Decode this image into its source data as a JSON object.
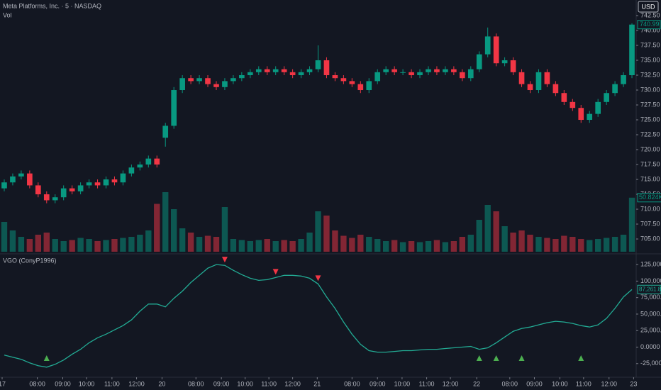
{
  "chart_data": [
    {
      "type": "candlestick",
      "title": "Meta Platforms, Inc. · 5 · NASDAQ",
      "volume_title": "Vol",
      "currency": "USD",
      "up_color": "#089981",
      "down_color": "#f23645",
      "xlim": [
        0,
        75
      ],
      "ylim": [
        702.86,
        745.12
      ],
      "yticks": [
        {
          "value": 705,
          "label": "705.00"
        },
        {
          "value": 707.5,
          "label": "707.50"
        },
        {
          "value": 710,
          "label": "710.00"
        },
        {
          "value": 712.5,
          "label": "712.50"
        },
        {
          "value": 715,
          "label": "715.00"
        },
        {
          "value": 717.5,
          "label": "717.50"
        },
        {
          "value": 720,
          "label": "720.00"
        },
        {
          "value": 722.5,
          "label": "722.50"
        },
        {
          "value": 725,
          "label": "725.00"
        },
        {
          "value": 727.5,
          "label": "727.50"
        },
        {
          "value": 730,
          "label": "730.00"
        },
        {
          "value": 732.5,
          "label": "732.50"
        },
        {
          "value": 735,
          "label": "735.00"
        },
        {
          "value": 737.5,
          "label": "737.50"
        },
        {
          "value": 740,
          "label": "740.00"
        },
        {
          "value": 742.5,
          "label": "742.50"
        }
      ],
      "open": [
        713.5,
        714.5,
        715.5,
        716,
        714,
        712.5,
        711.5,
        712,
        713.5,
        713,
        714,
        714.5,
        714,
        715,
        714.5,
        716,
        717,
        717.5,
        718.5,
        722,
        724,
        730,
        732,
        731.5,
        732,
        731,
        730.5,
        731.5,
        732,
        732.5,
        733,
        733.5,
        733,
        733.5,
        733,
        732.5,
        733,
        733.5,
        735,
        732.5,
        732,
        731.5,
        731,
        730,
        731.5,
        733,
        733.5,
        733,
        733,
        732.5,
        733,
        733.5,
        733,
        733.5,
        733,
        732,
        733.5,
        736,
        739,
        734.5,
        735,
        733,
        731,
        730,
        733,
        731,
        729.5,
        728,
        727,
        725,
        726,
        728,
        729.5,
        731,
        732.5
      ],
      "high": [
        715,
        716,
        716.5,
        716.5,
        714.5,
        713,
        712.5,
        714,
        714,
        714.5,
        715,
        715,
        715.5,
        715.5,
        716.5,
        717.5,
        718,
        719,
        719,
        724.5,
        730.5,
        732.5,
        732.5,
        732.5,
        732.5,
        731.5,
        732,
        732.5,
        733,
        733.5,
        734,
        734,
        734,
        734,
        733.5,
        733.5,
        734,
        737.5,
        735.5,
        733,
        732.5,
        732,
        731.5,
        732,
        733.5,
        734,
        734,
        733.5,
        733.5,
        733.5,
        734,
        734,
        734,
        734,
        733.5,
        734,
        736.5,
        740.5,
        739.5,
        735.5,
        735.5,
        733.5,
        731.5,
        733.5,
        733.5,
        731.5,
        730,
        728.5,
        727.5,
        726.5,
        728.5,
        730,
        731.5,
        733,
        741.2
      ],
      "low": [
        713,
        714,
        715,
        713.5,
        712,
        711,
        711,
        711.5,
        712.5,
        712.5,
        713.5,
        713.5,
        713.5,
        714,
        714,
        715.5,
        716.5,
        717,
        717,
        720.5,
        723.5,
        729.5,
        731,
        731,
        730.5,
        730,
        730,
        731,
        731.5,
        732,
        732.5,
        732.5,
        732.5,
        732.5,
        732,
        732,
        732.5,
        733,
        732,
        731.5,
        731,
        730.5,
        729.5,
        729.5,
        731,
        732.5,
        732.5,
        732.5,
        732,
        732,
        732.5,
        732.5,
        732.5,
        732.5,
        731.5,
        731.5,
        733,
        735.5,
        734,
        734,
        732.5,
        730.5,
        729.5,
        729.5,
        730.5,
        729,
        727.5,
        726.5,
        724.5,
        724.5,
        725.5,
        727.5,
        729,
        730.5,
        732
      ],
      "close": [
        714.5,
        715.5,
        716,
        714,
        712.5,
        711.5,
        712,
        713.5,
        713,
        714,
        714.5,
        714,
        715,
        714.5,
        716,
        717,
        717.5,
        718.5,
        717.5,
        724,
        730,
        732,
        731.5,
        732,
        731,
        730.5,
        731.5,
        732,
        732.5,
        733,
        733.5,
        733,
        733.5,
        733,
        732.5,
        733,
        733.5,
        735,
        732.5,
        732,
        731.5,
        731,
        730,
        731.5,
        733,
        733.5,
        733,
        733,
        732.5,
        733,
        733.5,
        733,
        733.5,
        733,
        732,
        733.5,
        736,
        739,
        734.5,
        735,
        733,
        731,
        730,
        733,
        731,
        729.5,
        728,
        727,
        725,
        726,
        728,
        729.5,
        731,
        732.5,
        740.99
      ],
      "last_price_label": "740.99",
      "volume": [
        28000,
        20000,
        14000,
        12000,
        16000,
        18000,
        12000,
        10000,
        11000,
        13000,
        12000,
        10000,
        11000,
        12000,
        13000,
        14000,
        16000,
        20000,
        45000,
        56000,
        40000,
        22000,
        18000,
        14000,
        15000,
        14000,
        42000,
        12000,
        11000,
        10000,
        11000,
        12000,
        10000,
        11000,
        10000,
        12000,
        18000,
        38000,
        34000,
        20000,
        15000,
        13000,
        16000,
        14000,
        12000,
        10000,
        11000,
        9000,
        10000,
        9000,
        10000,
        11000,
        9000,
        10000,
        14000,
        16000,
        30000,
        44000,
        38000,
        24000,
        18000,
        20000,
        16000,
        14000,
        13000,
        12000,
        15000,
        14000,
        12000,
        11000,
        12000,
        13000,
        14000,
        16000,
        50824
      ],
      "volume_lim": [
        0,
        60000
      ],
      "last_volume_label": "50.824K"
    },
    {
      "type": "line",
      "title": "VGO (ConyP1996)",
      "color": "#22ab94",
      "sell_color": "#f23645",
      "buy_color": "#4caf50",
      "xlim": [
        0,
        75
      ],
      "ylim": [
        -45650,
        139100
      ],
      "xticks": [
        {
          "value": 0.25,
          "label": "17"
        },
        {
          "value": 4.4,
          "label": "08:00"
        },
        {
          "value": 7.4,
          "label": "09:00"
        },
        {
          "value": 10.2,
          "label": "10:00"
        },
        {
          "value": 13.2,
          "label": "11:00"
        },
        {
          "value": 16.1,
          "label": "12:00"
        },
        {
          "value": 19.1,
          "label": "20"
        },
        {
          "value": 23.1,
          "label": "08:00"
        },
        {
          "value": 26.1,
          "label": "09:00"
        },
        {
          "value": 28.9,
          "label": "10:00"
        },
        {
          "value": 31.7,
          "label": "11:00"
        },
        {
          "value": 34.5,
          "label": "12:00"
        },
        {
          "value": 37.4,
          "label": "21"
        },
        {
          "value": 41.5,
          "label": "08:00"
        },
        {
          "value": 44.5,
          "label": "09:00"
        },
        {
          "value": 47.4,
          "label": "10:00"
        },
        {
          "value": 50.3,
          "label": "11:00"
        },
        {
          "value": 53.1,
          "label": "12:00"
        },
        {
          "value": 56.2,
          "label": "22"
        },
        {
          "value": 60.1,
          "label": "08:00"
        },
        {
          "value": 63,
          "label": "09:00"
        },
        {
          "value": 66,
          "label": "10:00"
        },
        {
          "value": 68.8,
          "label": "11:00"
        },
        {
          "value": 71.8,
          "label": "12:00"
        },
        {
          "value": 74.7,
          "label": "23"
        }
      ],
      "yticks": [
        {
          "value": -25000,
          "label": "-25,000.00"
        },
        {
          "value": 0,
          "label": "0.0000"
        },
        {
          "value": 25000,
          "label": "25,000.00"
        },
        {
          "value": 50000,
          "label": "50,000.00"
        },
        {
          "value": 75000,
          "label": "75,000.00"
        },
        {
          "value": 100000,
          "label": "100,000.00"
        },
        {
          "value": 125000,
          "label": "125,000.00"
        }
      ],
      "values": [
        -12000,
        -15200,
        -18500,
        -23900,
        -28300,
        -30400,
        -26100,
        -19600,
        -10900,
        -3300,
        6500,
        14100,
        19600,
        26100,
        32600,
        41300,
        54300,
        65200,
        65200,
        60900,
        73900,
        84800,
        97800,
        108700,
        119600,
        125000,
        123900,
        116300,
        109800,
        104300,
        101100,
        102200,
        105400,
        108700,
        108700,
        107600,
        104300,
        95700,
        76100,
        58700,
        38000,
        19600,
        4300,
        -5400,
        -7600,
        -7600,
        -6500,
        -5400,
        -5400,
        -4300,
        -3300,
        -3300,
        -2200,
        -1100,
        0,
        1100,
        -3300,
        -1100,
        6500,
        15200,
        23900,
        28300,
        30400,
        33700,
        37000,
        39100,
        38000,
        35900,
        32600,
        30400,
        33700,
        43500,
        58700,
        76100,
        87261.83
      ],
      "last_value_label": "87,261.83",
      "sell_signals": [
        26,
        32,
        37
      ],
      "buy_signals": [
        5,
        56,
        58,
        61,
        68
      ]
    }
  ]
}
